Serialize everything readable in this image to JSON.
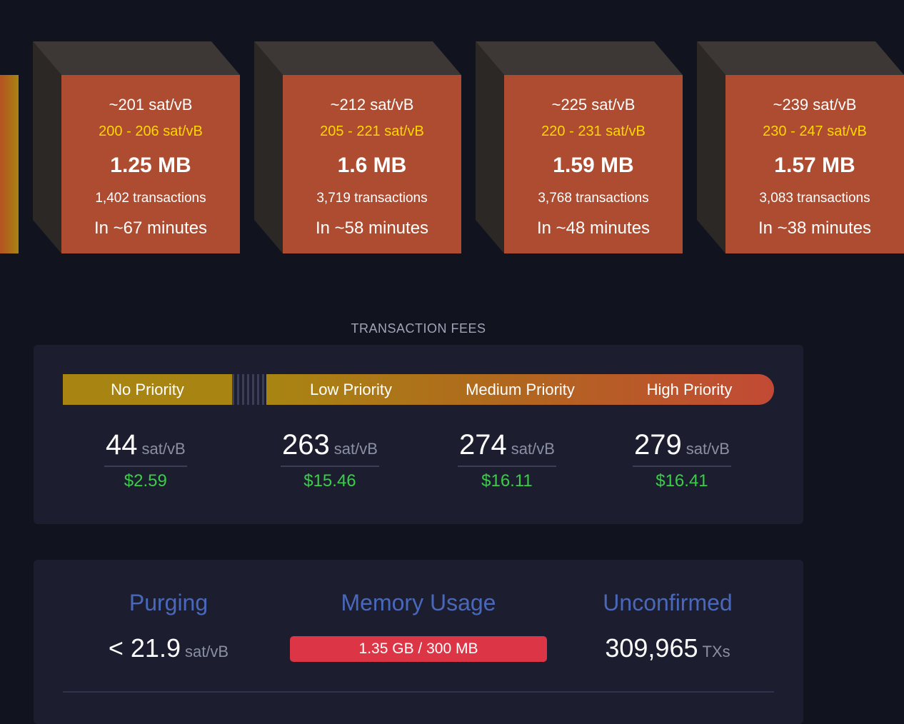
{
  "blocks": [
    {
      "fee": "~201 sat/vB",
      "range": "200 - 206 sat/vB",
      "size": "1.25 MB",
      "tx": "1,402 transactions",
      "eta": "In ~67 minutes"
    },
    {
      "fee": "~212 sat/vB",
      "range": "205 - 221 sat/vB",
      "size": "1.6 MB",
      "tx": "3,719 transactions",
      "eta": "In ~58 minutes"
    },
    {
      "fee": "~225 sat/vB",
      "range": "220 - 231 sat/vB",
      "size": "1.59 MB",
      "tx": "3,768 transactions",
      "eta": "In ~48 minutes"
    },
    {
      "fee": "~239 sat/vB",
      "range": "230 - 247 sat/vB",
      "size": "1.57 MB",
      "tx": "3,083 transactions",
      "eta": "In ~38 minutes"
    }
  ],
  "fees": {
    "title": "TRANSACTION FEES",
    "labels": [
      "No Priority",
      "Low Priority",
      "Medium Priority",
      "High Priority"
    ],
    "unit": "sat/vB",
    "values": [
      {
        "rate": "44",
        "usd": "$2.59"
      },
      {
        "rate": "263",
        "usd": "$15.46"
      },
      {
        "rate": "274",
        "usd": "$16.11"
      },
      {
        "rate": "279",
        "usd": "$16.41"
      }
    ]
  },
  "stats": {
    "purging": {
      "label": "Purging",
      "value": "< 21.9",
      "unit": "sat/vB"
    },
    "memory": {
      "label": "Memory Usage",
      "value": "1.35 GB / 300 MB"
    },
    "unconfirmed": {
      "label": "Unconfirmed",
      "value": "309,965",
      "unit": "TXs"
    }
  },
  "colors": {
    "block_face": "#ad4c30",
    "range_text": "#ffd700",
    "usd_text": "#3bcc49",
    "stat_label": "#4a68b9",
    "memory_bar": "#dc3545"
  }
}
